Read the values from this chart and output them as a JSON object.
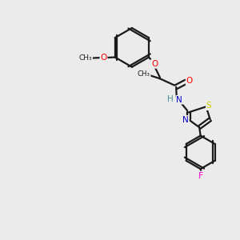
{
  "bg_color": "#ebebeb",
  "bond_color": "#1a1a1a",
  "colors": {
    "O": "#ff0000",
    "N": "#0000cd",
    "S": "#cccc00",
    "F": "#ff00cc",
    "C": "#1a1a1a",
    "H": "#4a9090"
  },
  "lw": 1.6,
  "fs": 7.5
}
